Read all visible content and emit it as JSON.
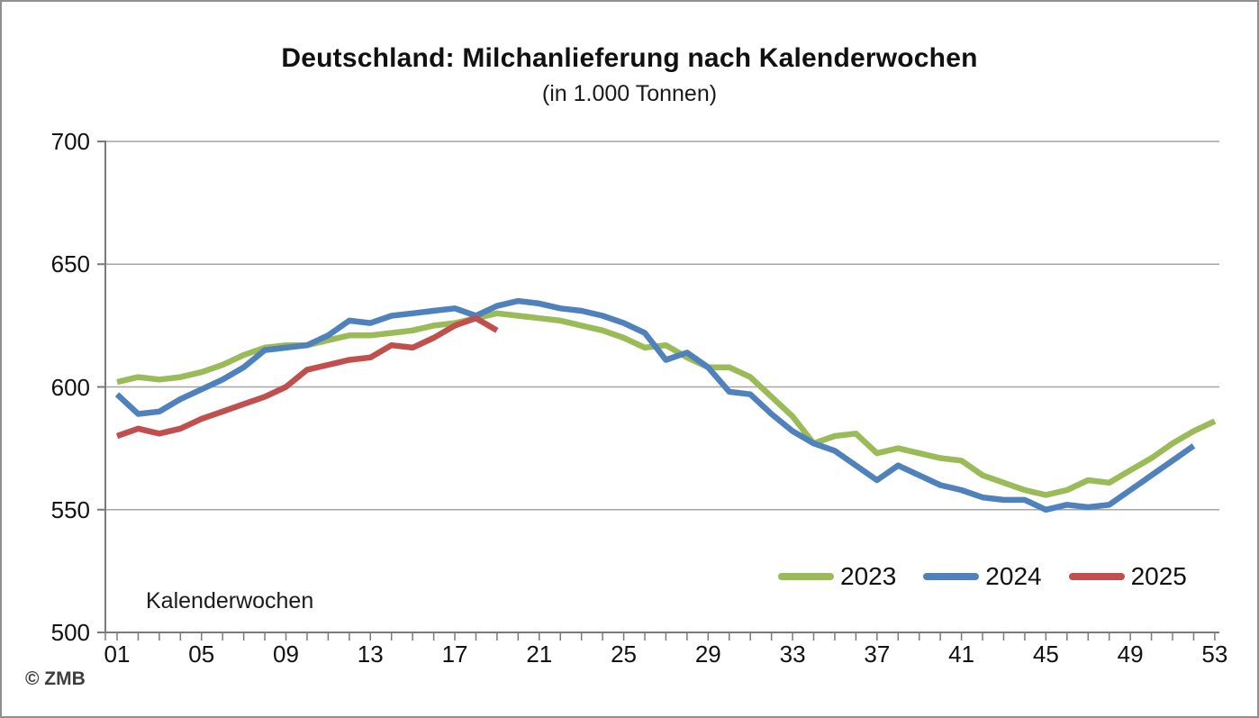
{
  "chart_data": {
    "type": "line",
    "title": "Deutschland: Milchanlieferung nach Kalenderwochen",
    "subtitle": "(in 1.000 Tonnen)",
    "x_axis_note": "Kalenderwochen",
    "ylim": [
      500,
      700
    ],
    "y_ticks": [
      500,
      550,
      600,
      650,
      700
    ],
    "x_ticks": [
      {
        "week": 1,
        "label": "01"
      },
      {
        "week": 5,
        "label": "05"
      },
      {
        "week": 9,
        "label": "09"
      },
      {
        "week": 13,
        "label": "13"
      },
      {
        "week": 17,
        "label": "17"
      },
      {
        "week": 21,
        "label": "21"
      },
      {
        "week": 25,
        "label": "25"
      },
      {
        "week": 29,
        "label": "29"
      },
      {
        "week": 33,
        "label": "33"
      },
      {
        "week": 37,
        "label": "37"
      },
      {
        "week": 41,
        "label": "41"
      },
      {
        "week": 45,
        "label": "45"
      },
      {
        "week": 49,
        "label": "49"
      },
      {
        "week": 53,
        "label": "53"
      }
    ],
    "weeks_total": 53,
    "grid": "horizontal-only",
    "legend_position": "inside-bottom-right",
    "colors": {
      "axis": "#7a7a7a",
      "gridline": "#a6a6a6",
      "text": "#111111"
    },
    "series": [
      {
        "name": "2023",
        "color": "#9BBB59",
        "start_week": 1,
        "values": [
          602,
          604,
          603,
          604,
          606,
          609,
          613,
          616,
          617,
          617,
          619,
          621,
          621,
          622,
          623,
          625,
          626,
          628,
          630,
          629,
          628,
          627,
          625,
          623,
          620,
          616,
          617,
          612,
          608,
          608,
          604,
          596,
          588,
          577,
          580,
          581,
          573,
          575,
          573,
          571,
          570,
          564,
          561,
          558,
          556,
          558,
          562,
          561,
          566,
          571,
          577,
          582,
          586
        ]
      },
      {
        "name": "2024",
        "color": "#4F81BD",
        "start_week": 1,
        "values": [
          597,
          589,
          590,
          595,
          599,
          603,
          608,
          615,
          616,
          617,
          621,
          627,
          626,
          629,
          630,
          631,
          632,
          629,
          633,
          635,
          634,
          632,
          631,
          629,
          626,
          622,
          611,
          614,
          608,
          598,
          597,
          589,
          582,
          577,
          574,
          568,
          562,
          568,
          564,
          560,
          558,
          555,
          554,
          554,
          550,
          552,
          551,
          552,
          558,
          564,
          570,
          576
        ]
      },
      {
        "name": "2025",
        "color": "#C0504D",
        "start_week": 1,
        "values": [
          580,
          583,
          581,
          583,
          587,
          590,
          593,
          596,
          600,
          607,
          609,
          611,
          612,
          617,
          616,
          620,
          625,
          628,
          623
        ]
      }
    ]
  },
  "footer": {
    "copyright": "© ZMB"
  }
}
